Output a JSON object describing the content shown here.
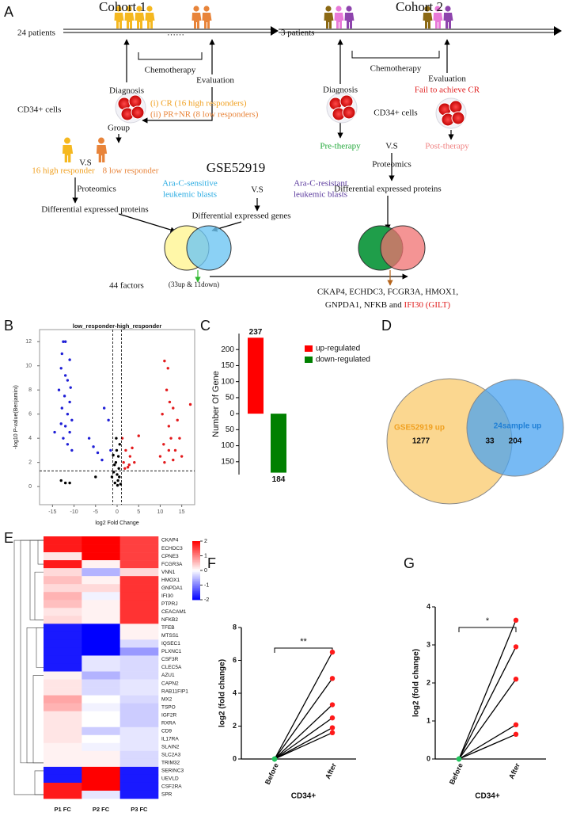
{
  "panels": [
    "A",
    "B",
    "C",
    "D",
    "E",
    "F",
    "G"
  ],
  "diagram": {
    "cohort1": {
      "title": "Cohort 1",
      "patients": "24 patients",
      "ellipsis": "……",
      "chemotherapy": "Chemotherapy",
      "diagnosis": "Diagnosis",
      "evaluation": "Evaluation",
      "cells": "CD34+ cells",
      "outcomes": [
        "(i)     CR (16 high responders)",
        "(ii)    PR+NR (8 low responders)"
      ],
      "group": "Group",
      "high": "16 high responder",
      "vs": "V.S",
      "low": "8 low responder",
      "proteomics": "Proteomics",
      "differential": "Differential   expressed proteins"
    },
    "gse": {
      "title": "GSE52919",
      "sensitive": [
        "Ara-C-sensitive",
        "leukemic blasts"
      ],
      "vs": "V.S",
      "resistant": [
        "Ara-C-resistant",
        "leukemic blasts"
      ],
      "differential": "Differential   expressed genes"
    },
    "result1": {
      "count": "44 factors",
      "detail": "(33up & 11down)"
    },
    "cohort2": {
      "title": "Cohort 2",
      "patients": "3 patients",
      "chemotherapy": "Chemotherapy",
      "diagnosis": "Diagnosis",
      "evaluation": "Evaluation",
      "fail": "Fail to achieve CR",
      "cells": "CD34+ cells",
      "pre": "Pre-therapy",
      "vs": "V.S",
      "post": "Post-therapy",
      "proteomics": "Proteomics",
      "differential": "Differential   expressed proteins"
    },
    "result2": {
      "line1": "CKAP4, ECHDC3, FCGR3A, HMOX1,",
      "line2": "GNPDA1, NFKB and ",
      "highlight": "IFI30 (GILT)"
    }
  },
  "chart_data": [
    {
      "type": "scatter",
      "title": "low_responder-high_responder",
      "xlabel": "log2 Fold Change",
      "ylabel": "-log10 P-value(Benjamini)",
      "xlim": [
        -18,
        18
      ],
      "ylim": [
        -1.5,
        13
      ],
      "xticks": [
        -15,
        -10,
        -5,
        0,
        5,
        10,
        15
      ],
      "yticks": [
        0,
        2,
        4,
        6,
        8,
        10,
        12
      ],
      "vlines": [
        -1,
        1
      ],
      "hline": 1.3,
      "series": [
        {
          "color": "#1f1fd6",
          "x": [
            -12.5,
            -12,
            -12.8,
            -11,
            -13,
            -12,
            -11.5,
            -10.8,
            -13.5,
            -12.2,
            -11,
            -12.8,
            -11.5,
            -10.5,
            -13,
            -12,
            -11,
            -14.5,
            -12.5,
            -11.5,
            -10.5,
            -6.5,
            -5.5,
            -4.5,
            -3,
            -2,
            -1.5,
            -3.5
          ],
          "y": [
            12,
            12,
            11,
            10.5,
            9.8,
            9.2,
            8.8,
            8.2,
            8,
            7.5,
            7,
            6.5,
            6,
            5.5,
            5.2,
            5,
            4.5,
            4.5,
            4,
            3.5,
            3,
            4,
            3.3,
            2.8,
            6.5,
            5.5,
            3,
            2.2
          ]
        },
        {
          "color": "#000000",
          "x": [
            -0.5,
            0.2,
            0,
            -0.8,
            0.5,
            -0.3,
            0.4,
            -1.2,
            0.8,
            -0.1,
            0.3,
            -0.6,
            0.1,
            -5,
            -12,
            -11,
            -13,
            -0.2,
            0.6,
            -0.9
          ],
          "y": [
            0.3,
            0.5,
            1,
            1.2,
            0.8,
            2,
            1.5,
            0.8,
            0.2,
            3,
            2.5,
            1.8,
            0.1,
            0.8,
            0.3,
            0.3,
            0.5,
            4,
            3.5,
            2.6
          ]
        },
        {
          "color": "#e31a1c",
          "x": [
            1.5,
            2,
            2.5,
            3,
            1.2,
            3.5,
            4,
            5,
            1.8,
            2.8,
            10,
            10.5,
            11,
            11.5,
            12,
            12.5,
            13,
            13.5,
            14,
            12,
            11,
            15,
            17,
            13,
            10.8,
            14.5,
            11.8,
            12.2
          ],
          "y": [
            2,
            3,
            1.6,
            2.5,
            4,
            3.2,
            2,
            4.2,
            1.5,
            1.8,
            2.5,
            6,
            10.4,
            8,
            5,
            4,
            6.5,
            3,
            5.5,
            3,
            2,
            2.5,
            6.8,
            2.2,
            3.5,
            4,
            9.8,
            7
          ]
        }
      ]
    },
    {
      "type": "bar",
      "ylabel": "Number Of Gene",
      "categories": [
        "up-regulated",
        "down-regulated"
      ],
      "values": [
        237,
        -184
      ],
      "value_labels": [
        "237",
        "184"
      ],
      "colors": [
        "#ff0000",
        "#008000"
      ],
      "ylim": [
        -190,
        250
      ],
      "yticks": [
        200,
        150,
        100,
        50,
        0,
        {
          "value": -50,
          "label": "50"
        },
        {
          "value": -100,
          "label": "100"
        },
        {
          "value": -150,
          "label": "150"
        }
      ]
    },
    {
      "type": "venn",
      "sets": [
        {
          "name": "GSE52919 up",
          "value": 1277,
          "color": "#f9c96b",
          "text_color": "#f0a020"
        },
        {
          "name": "24sample up",
          "value": 204,
          "color": "#4aa3f0",
          "text_color": "#1f7fd6"
        }
      ],
      "overlap": 33
    },
    {
      "type": "heatmap",
      "columns": [
        "P1 FC",
        "P2 FC",
        "P3 FC"
      ],
      "rows": [
        "CKAP4",
        "ECHDC3",
        "CPNE3",
        "FCGR3A",
        "VNN1",
        "HMOX1",
        "GNPDA1",
        "IFI30",
        "PTPRJ",
        "CEACAM1",
        "NFKB2",
        "TFEB",
        "MTSS1",
        "IQSEC1",
        "PLXNC1",
        "CSF3R",
        "CLEC5A",
        "AZU1",
        "CAPN2",
        "RAB11FIP1",
        "MX2",
        "TSPO",
        "IGF2R",
        "RXRA",
        "CD9",
        "IL17RA",
        "SLAIN2",
        "SLC2A3",
        "TRIM32",
        "SERINC3",
        "UEVLD",
        "CSF2RA",
        "SPR"
      ],
      "values": [
        [
          1.8,
          2,
          1.5
        ],
        [
          1.8,
          2,
          1.5
        ],
        [
          0.2,
          2,
          1.5
        ],
        [
          1.8,
          0.1,
          1.5
        ],
        [
          0.3,
          -0.6,
          0.3
        ],
        [
          0.5,
          0.1,
          1.6
        ],
        [
          0.3,
          0.3,
          1.6
        ],
        [
          0.6,
          -0.1,
          1.6
        ],
        [
          0.5,
          0.1,
          1.6
        ],
        [
          0.2,
          0.1,
          1.6
        ],
        [
          0.3,
          0.1,
          1.6
        ],
        [
          -1.8,
          -2,
          0.1
        ],
        [
          -1.8,
          -2,
          0.1
        ],
        [
          -1.8,
          -2,
          -0.3
        ],
        [
          -1.8,
          -2,
          -0.8
        ],
        [
          -1.8,
          -0.2,
          -0.3
        ],
        [
          -1.8,
          -0.2,
          -0.3
        ],
        [
          0.1,
          -0.6,
          -0.3
        ],
        [
          0.2,
          -0.3,
          -0.2
        ],
        [
          0.2,
          -0.3,
          -0.2
        ],
        [
          0.7,
          0,
          -0.3
        ],
        [
          0.6,
          -0.1,
          -0.4
        ],
        [
          0.2,
          0,
          -0.4
        ],
        [
          0.2,
          0,
          -0.4
        ],
        [
          0.2,
          -0.4,
          -0.2
        ],
        [
          0.2,
          0,
          -0.2
        ],
        [
          0.1,
          -0.1,
          -0.2
        ],
        [
          0.1,
          0.1,
          -0.3
        ],
        [
          0.1,
          0.1,
          -0.3
        ],
        [
          -1.8,
          2,
          -1.8
        ],
        [
          -1.8,
          2,
          -1.8
        ],
        [
          1.8,
          2,
          -1.8
        ],
        [
          1.8,
          -0.2,
          -1.8
        ]
      ],
      "clim": [
        -2,
        2
      ],
      "cticks": [
        2,
        1,
        0,
        -1,
        -2
      ]
    },
    {
      "type": "paired",
      "categories": [
        "Before",
        "After"
      ],
      "xlabel": "CD34+",
      "ylabel": "log2 (fold change)",
      "significance": "**",
      "marker_colors": [
        "#22c55e",
        "#ff1a1a"
      ],
      "ylim": [
        0,
        8
      ],
      "yticks": [
        0,
        2,
        4,
        6,
        8
      ],
      "series": [
        {
          "values": [
            0,
            6.5
          ]
        },
        {
          "values": [
            0,
            4.9
          ]
        },
        {
          "values": [
            0,
            3.3
          ]
        },
        {
          "values": [
            0,
            2.5
          ]
        },
        {
          "values": [
            0,
            1.9
          ]
        },
        {
          "values": [
            0,
            1.6
          ]
        }
      ]
    },
    {
      "type": "paired",
      "categories": [
        "Before",
        "After"
      ],
      "xlabel": "CD34+",
      "ylabel": "log2 (fold change)",
      "significance": "*",
      "marker_colors": [
        "#22c55e",
        "#ff1a1a"
      ],
      "ylim": [
        0,
        4
      ],
      "yticks": [
        0,
        1,
        2,
        3,
        4
      ],
      "series": [
        {
          "values": [
            0,
            3.65
          ]
        },
        {
          "values": [
            0,
            2.95
          ]
        },
        {
          "values": [
            0,
            2.1
          ]
        },
        {
          "values": [
            0,
            0.9
          ]
        },
        {
          "values": [
            0,
            0.65
          ]
        }
      ]
    }
  ]
}
